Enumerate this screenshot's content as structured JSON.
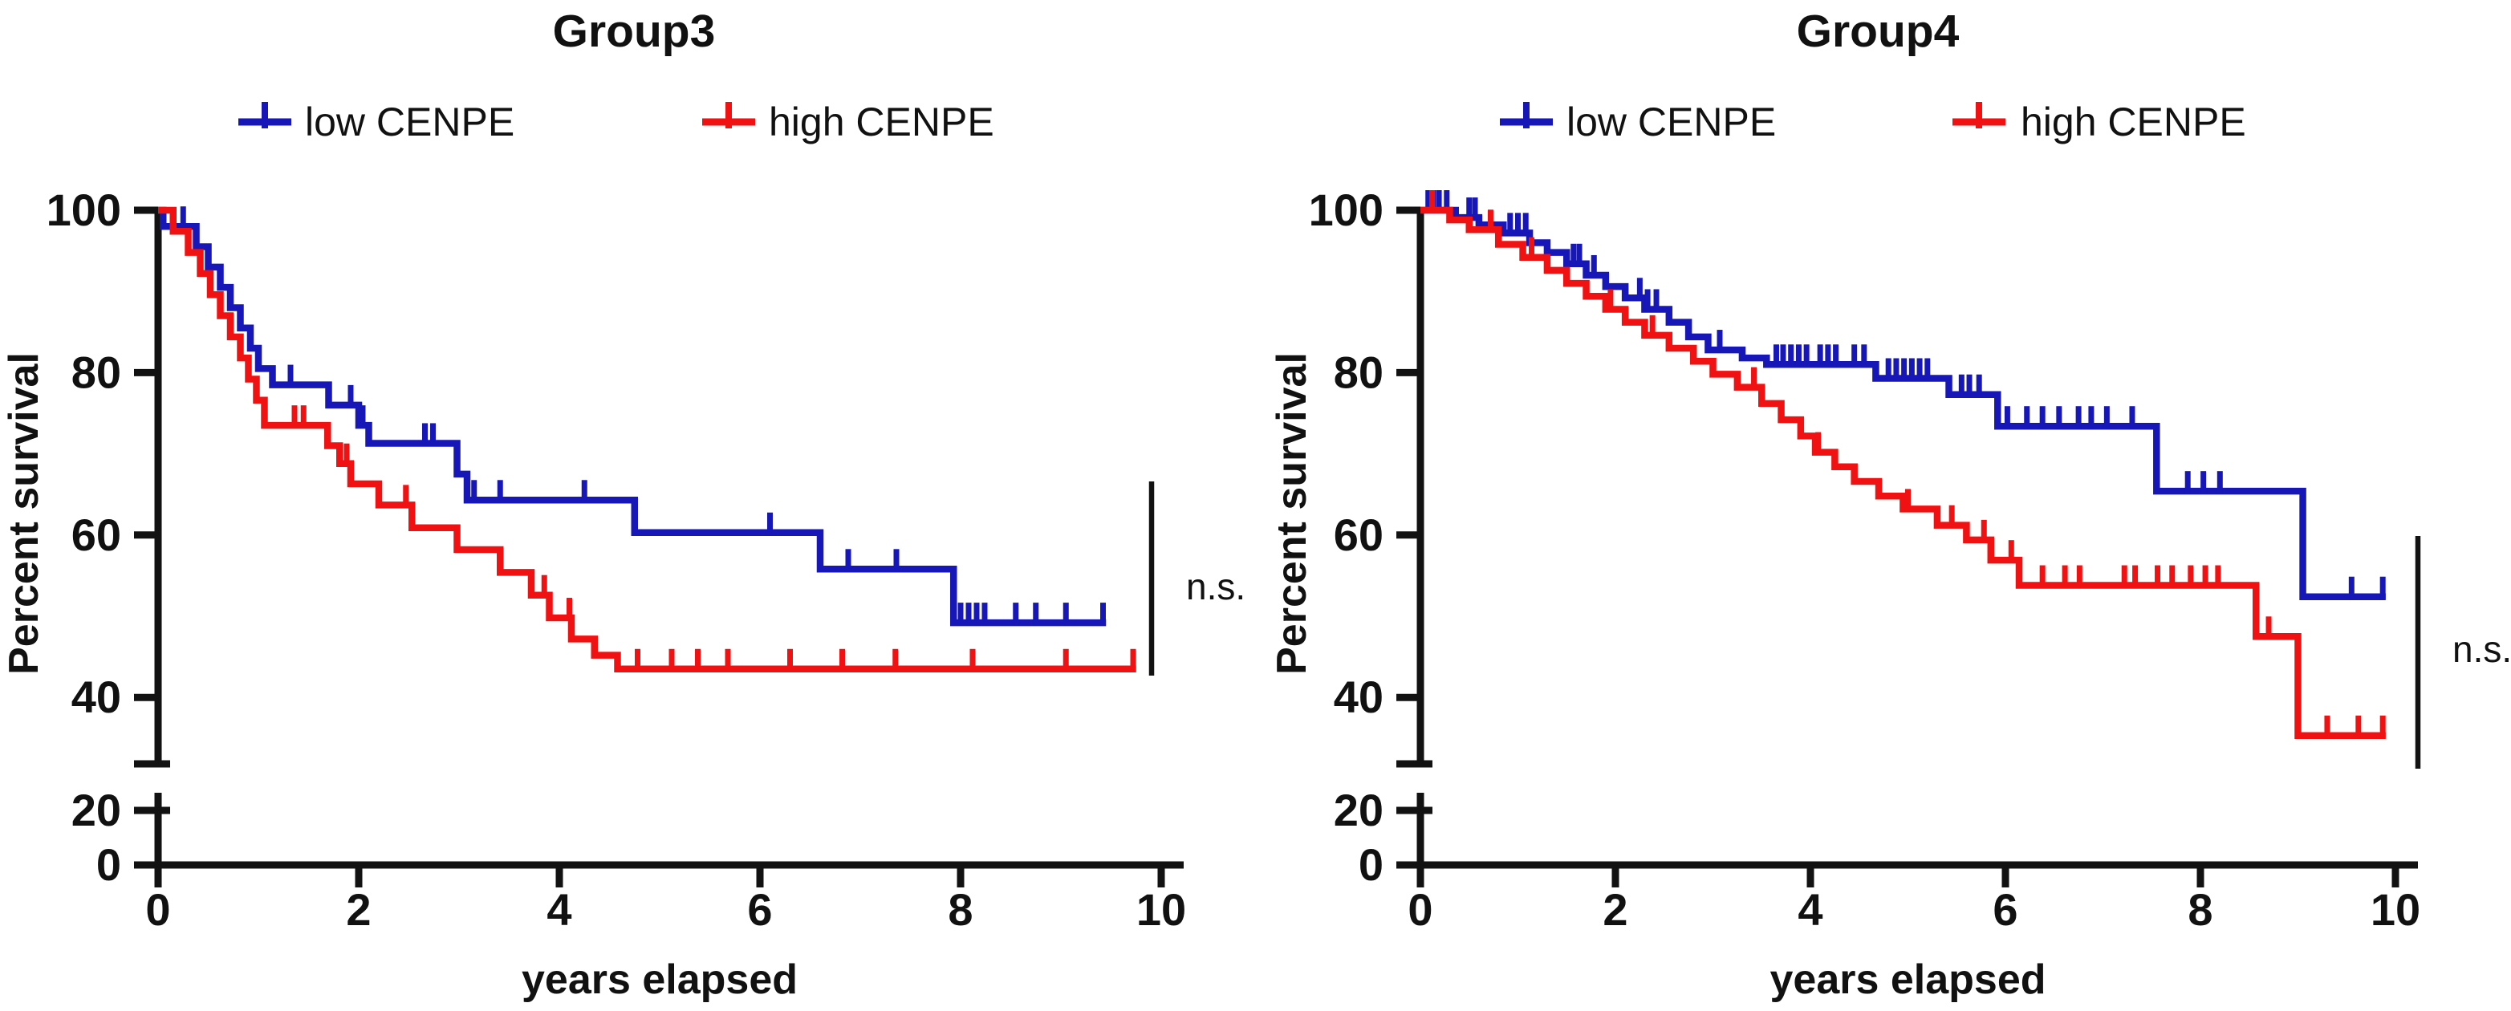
{
  "figure": {
    "background": "#ffffff",
    "axis_color": "#121212",
    "text_color": "#111111",
    "low_color": "#1717b8",
    "high_color": "#f01212"
  },
  "chart_data": [
    {
      "type": "line",
      "subtype": "kaplan-meier",
      "title": "Group3",
      "xlabel": "years elapsed",
      "ylabel": "Percent survival",
      "xlim": [
        0,
        10
      ],
      "x_ticks": [
        "0",
        "2",
        "4",
        "6",
        "8",
        "10"
      ],
      "y_ticks": [
        "100",
        "80",
        "60",
        "40",
        "20",
        "0"
      ],
      "y_axis_break_between": [
        40,
        20
      ],
      "grid": false,
      "legend_position": "top",
      "annotation": {
        "text": "n.s."
      },
      "legend": [
        {
          "label": "low CENPE",
          "color": "#1717b8"
        },
        {
          "label": "high CENPE",
          "color": "#f01212"
        }
      ],
      "series": [
        {
          "name": "low CENPE",
          "color": "#1717b8",
          "steps": [
            [
              0,
              100
            ],
            [
              0.05,
              98
            ],
            [
              0.38,
              95.5
            ],
            [
              0.5,
              93
            ],
            [
              0.62,
              90.5
            ],
            [
              0.72,
              88
            ],
            [
              0.82,
              85.5
            ],
            [
              0.92,
              83
            ],
            [
              1.0,
              80.5
            ],
            [
              1.14,
              78.5
            ],
            [
              1.7,
              76
            ],
            [
              2.0,
              73.5
            ],
            [
              2.1,
              71.3
            ],
            [
              2.98,
              67.5
            ],
            [
              3.08,
              64.3
            ],
            [
              4.75,
              60.3
            ],
            [
              6.6,
              55.8
            ],
            [
              7.93,
              49.2
            ]
          ],
          "censor_times": [
            0.25,
            1.32,
            1.92,
            2.04,
            2.66,
            2.74,
            3.15,
            3.41,
            4.25,
            6.1,
            6.88,
            7.36,
            8.0,
            8.08,
            8.16,
            8.24,
            8.55,
            8.75,
            9.05,
            9.42
          ],
          "end_time": 9.45
        },
        {
          "name": "high CENPE",
          "color": "#f01212",
          "steps": [
            [
              0,
              100
            ],
            [
              0.15,
              97.4
            ],
            [
              0.3,
              94.8
            ],
            [
              0.42,
              92.2
            ],
            [
              0.52,
              89.6
            ],
            [
              0.62,
              87
            ],
            [
              0.72,
              84.4
            ],
            [
              0.82,
              81.8
            ],
            [
              0.9,
              79.2
            ],
            [
              0.98,
              76.6
            ],
            [
              1.06,
              73.5
            ],
            [
              1.69,
              71
            ],
            [
              1.81,
              68.8
            ],
            [
              1.92,
              66.3
            ],
            [
              2.2,
              63.7
            ],
            [
              2.53,
              60.9
            ],
            [
              2.98,
              58.2
            ],
            [
              3.41,
              55.4
            ],
            [
              3.72,
              52.6
            ],
            [
              3.9,
              49.8
            ],
            [
              4.12,
              47.2
            ],
            [
              4.35,
              45.2
            ],
            [
              4.58,
              43.5
            ]
          ],
          "censor_times": [
            1.36,
            1.45,
            1.88,
            2.47,
            3.85,
            4.1,
            4.78,
            5.12,
            5.38,
            5.68,
            6.3,
            6.82,
            7.35,
            8.12,
            9.05,
            9.72
          ],
          "end_time": 9.75
        }
      ]
    },
    {
      "type": "line",
      "subtype": "kaplan-meier",
      "title": "Group4",
      "xlabel": "years elapsed",
      "ylabel": "Percent survival",
      "xlim": [
        0,
        10
      ],
      "x_ticks": [
        "0",
        "2",
        "4",
        "6",
        "8",
        "10"
      ],
      "y_ticks": [
        "100",
        "80",
        "60",
        "40",
        "20",
        "0"
      ],
      "y_axis_break_between": [
        40,
        20
      ],
      "grid": false,
      "legend_position": "top",
      "annotation": {
        "text": "n.s."
      },
      "legend": [
        {
          "label": "low CENPE",
          "color": "#1717b8"
        },
        {
          "label": "high CENPE",
          "color": "#f01212"
        }
      ],
      "series": [
        {
          "name": "low CENPE",
          "color": "#1717b8",
          "steps": [
            [
              0,
              100
            ],
            [
              0.36,
              99.1
            ],
            [
              0.6,
              98.2
            ],
            [
              0.85,
              97.2
            ],
            [
              1.12,
              96
            ],
            [
              1.3,
              94.8
            ],
            [
              1.5,
              93.4
            ],
            [
              1.7,
              92
            ],
            [
              1.9,
              90.6
            ],
            [
              2.1,
              89.2
            ],
            [
              2.3,
              87.8
            ],
            [
              2.55,
              86.2
            ],
            [
              2.75,
              84.4
            ],
            [
              2.95,
              82.8
            ],
            [
              3.3,
              81.8
            ],
            [
              3.55,
              81
            ],
            [
              4.67,
              79.3
            ],
            [
              5.42,
              77.3
            ],
            [
              5.92,
              73.4
            ],
            [
              7.55,
              65.4
            ],
            [
              9.05,
              52.4
            ]
          ],
          "censor_times": [
            0.08,
            0.13,
            0.19,
            0.27,
            0.5,
            0.56,
            0.92,
            1.0,
            1.08,
            1.57,
            1.63,
            1.78,
            2.25,
            2.33,
            2.42,
            3.07,
            3.65,
            3.72,
            3.8,
            3.88,
            3.96,
            4.1,
            4.18,
            4.26,
            4.45,
            4.55,
            4.8,
            4.88,
            4.96,
            5.04,
            5.12,
            5.2,
            5.55,
            5.63,
            5.73,
            6.02,
            6.22,
            6.38,
            6.55,
            6.75,
            6.88,
            7.04,
            7.3,
            7.87,
            8.03,
            8.2,
            9.55,
            9.87
          ],
          "end_time": 9.9
        },
        {
          "name": "high CENPE",
          "color": "#f01212",
          "steps": [
            [
              0,
              100
            ],
            [
              0.3,
              98.8
            ],
            [
              0.5,
              97.6
            ],
            [
              0.8,
              95.8
            ],
            [
              1.05,
              94.2
            ],
            [
              1.3,
              92.6
            ],
            [
              1.5,
              91
            ],
            [
              1.7,
              89.4
            ],
            [
              1.9,
              87.8
            ],
            [
              2.1,
              86.2
            ],
            [
              2.3,
              84.6
            ],
            [
              2.55,
              83
            ],
            [
              2.8,
              81.4
            ],
            [
              3.0,
              79.8
            ],
            [
              3.25,
              78.2
            ],
            [
              3.5,
              76.2
            ],
            [
              3.7,
              74.2
            ],
            [
              3.9,
              72.2
            ],
            [
              4.05,
              70.2
            ],
            [
              4.25,
              68.4
            ],
            [
              4.45,
              66.6
            ],
            [
              4.7,
              64.8
            ],
            [
              4.95,
              63.2
            ],
            [
              5.3,
              61.2
            ],
            [
              5.6,
              59.4
            ],
            [
              5.85,
              56.9
            ],
            [
              6.14,
              53.8
            ],
            [
              8.57,
              47.5
            ],
            [
              9.0,
              35.3
            ]
          ],
          "censor_times": [
            0.12,
            0.72,
            1.14,
            1.95,
            2.38,
            3.42,
            4.08,
            5.0,
            5.45,
            5.78,
            6.06,
            6.38,
            6.61,
            6.76,
            7.22,
            7.33,
            7.56,
            7.71,
            7.9,
            8.05,
            8.18,
            8.7,
            9.3,
            9.62,
            9.87
          ],
          "end_time": 9.9
        }
      ]
    }
  ]
}
